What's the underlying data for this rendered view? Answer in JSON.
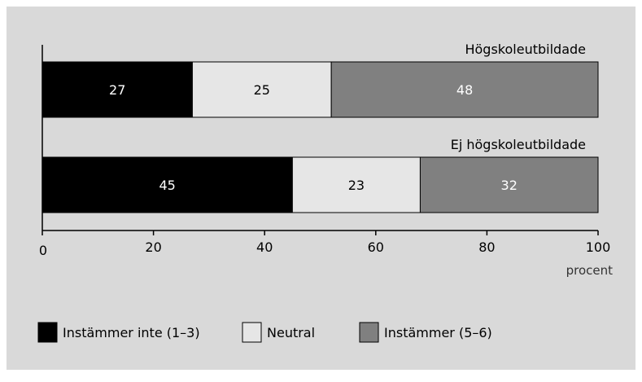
{
  "chart_data": {
    "type": "bar",
    "orientation": "horizontal",
    "stacked": true,
    "categories": [
      "Högskoleutbildade",
      "Ej högskoleutbildade"
    ],
    "series": [
      {
        "name": "Instämmer inte (1–3)",
        "values": [
          27,
          45
        ],
        "color": "#000000",
        "label_color": "#ffffff"
      },
      {
        "name": "Neutral",
        "values": [
          25,
          23
        ],
        "color": "#e6e6e6",
        "label_color": "#000000"
      },
      {
        "name": "Instämmer (5–6)",
        "values": [
          48,
          32
        ],
        "color": "#808080",
        "label_color": "#ffffff"
      }
    ],
    "xlim": [
      0,
      100
    ],
    "xticks": [
      0,
      20,
      40,
      60,
      80,
      100
    ],
    "xlabel": "procent",
    "grid": false,
    "legend": "bottom-left",
    "colors": {
      "background": "#d9d9d9",
      "axis": "#000000"
    }
  }
}
